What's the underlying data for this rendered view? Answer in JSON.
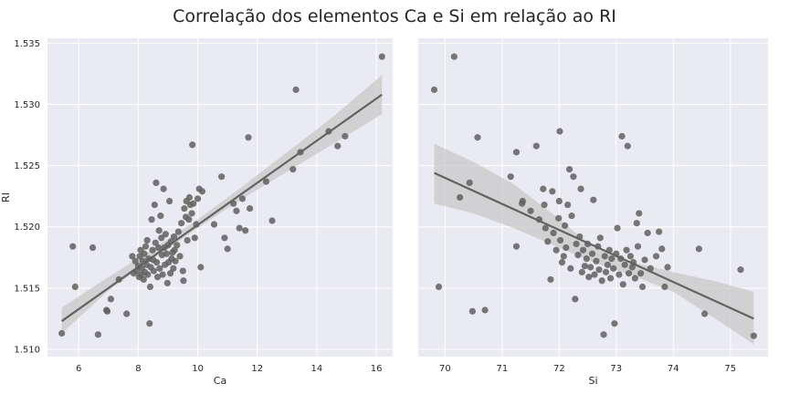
{
  "title": "Correlação dos elementos Ca e Si em relação ao RI",
  "colors": {
    "axes_bg": "#eaeaf2",
    "grid": "#ffffff",
    "point": "#606060",
    "line": "#626262",
    "ci_band": "#c8c8c8",
    "text": "#262626"
  },
  "chart_data": [
    {
      "type": "scatter",
      "regression": true,
      "confidence_band": true,
      "xlabel": "Ca",
      "ylabel": "RI",
      "xlim": [
        4.95,
        16.55
      ],
      "ylim": [
        1.5094,
        1.5354
      ],
      "xticks": [
        "6",
        "8",
        "10",
        "12",
        "14",
        "16"
      ],
      "yticks": [
        "1.510",
        "1.515",
        "1.520",
        "1.525",
        "1.530",
        "1.535"
      ],
      "grid": true,
      "fit": {
        "x": [
          5.43,
          16.19
        ],
        "y": [
          1.5123,
          1.5308
        ]
      },
      "ci": {
        "x": [
          5.43,
          7,
          8.5,
          10,
          11.5,
          13,
          14.5,
          16.19
        ],
        "lower": [
          1.5113,
          1.5148,
          1.5174,
          1.5199,
          1.5223,
          1.5245,
          1.5267,
          1.5292
        ],
        "upper": [
          1.5134,
          1.5159,
          1.5182,
          1.5206,
          1.5233,
          1.5261,
          1.5289,
          1.5324
        ]
      },
      "points": [
        {
          "x": 5.43,
          "y": 1.5113
        },
        {
          "x": 5.8,
          "y": 1.5184
        },
        {
          "x": 5.88,
          "y": 1.5151
        },
        {
          "x": 6.47,
          "y": 1.5183
        },
        {
          "x": 6.65,
          "y": 1.5112
        },
        {
          "x": 6.93,
          "y": 1.5132
        },
        {
          "x": 6.96,
          "y": 1.5131
        },
        {
          "x": 7.08,
          "y": 1.5141
        },
        {
          "x": 7.35,
          "y": 1.5157
        },
        {
          "x": 7.61,
          "y": 1.5129
        },
        {
          "x": 7.8,
          "y": 1.5176
        },
        {
          "x": 7.85,
          "y": 1.5162
        },
        {
          "x": 7.9,
          "y": 1.5172
        },
        {
          "x": 7.95,
          "y": 1.5164
        },
        {
          "x": 8.0,
          "y": 1.5168
        },
        {
          "x": 8.03,
          "y": 1.5159
        },
        {
          "x": 8.05,
          "y": 1.5176
        },
        {
          "x": 8.08,
          "y": 1.5181
        },
        {
          "x": 8.1,
          "y": 1.5161
        },
        {
          "x": 8.12,
          "y": 1.5166
        },
        {
          "x": 8.15,
          "y": 1.5172
        },
        {
          "x": 8.18,
          "y": 1.5157
        },
        {
          "x": 8.2,
          "y": 1.5178
        },
        {
          "x": 8.22,
          "y": 1.5163
        },
        {
          "x": 8.25,
          "y": 1.5184
        },
        {
          "x": 8.28,
          "y": 1.5169
        },
        {
          "x": 8.3,
          "y": 1.5189
        },
        {
          "x": 8.32,
          "y": 1.5161
        },
        {
          "x": 8.35,
          "y": 1.5174
        },
        {
          "x": 8.38,
          "y": 1.5121
        },
        {
          "x": 8.4,
          "y": 1.5151
        },
        {
          "x": 8.42,
          "y": 1.5167
        },
        {
          "x": 8.45,
          "y": 1.5206
        },
        {
          "x": 8.48,
          "y": 1.5181
        },
        {
          "x": 8.5,
          "y": 1.5173
        },
        {
          "x": 8.52,
          "y": 1.5164
        },
        {
          "x": 8.55,
          "y": 1.5218
        },
        {
          "x": 8.58,
          "y": 1.5187
        },
        {
          "x": 8.6,
          "y": 1.5236
        },
        {
          "x": 8.62,
          "y": 1.5171
        },
        {
          "x": 8.65,
          "y": 1.5159
        },
        {
          "x": 8.68,
          "y": 1.5183
        },
        {
          "x": 8.7,
          "y": 1.5197
        },
        {
          "x": 8.72,
          "y": 1.5166
        },
        {
          "x": 8.75,
          "y": 1.5209
        },
        {
          "x": 8.78,
          "y": 1.5191
        },
        {
          "x": 8.8,
          "y": 1.5177
        },
        {
          "x": 8.82,
          "y": 1.5161
        },
        {
          "x": 8.85,
          "y": 1.5231
        },
        {
          "x": 8.88,
          "y": 1.5183
        },
        {
          "x": 8.9,
          "y": 1.5169
        },
        {
          "x": 8.92,
          "y": 1.5194
        },
        {
          "x": 8.95,
          "y": 1.5178
        },
        {
          "x": 8.98,
          "y": 1.5154
        },
        {
          "x": 9.0,
          "y": 1.5185
        },
        {
          "x": 9.02,
          "y": 1.5171
        },
        {
          "x": 9.05,
          "y": 1.5221
        },
        {
          "x": 9.08,
          "y": 1.5162
        },
        {
          "x": 9.1,
          "y": 1.5188
        },
        {
          "x": 9.12,
          "y": 1.5174
        },
        {
          "x": 9.15,
          "y": 1.5179
        },
        {
          "x": 9.18,
          "y": 1.5166
        },
        {
          "x": 9.2,
          "y": 1.5192
        },
        {
          "x": 9.22,
          "y": 1.5181
        },
        {
          "x": 9.25,
          "y": 1.5172
        },
        {
          "x": 9.3,
          "y": 1.5185
        },
        {
          "x": 9.35,
          "y": 1.5196
        },
        {
          "x": 9.4,
          "y": 1.5176
        },
        {
          "x": 9.45,
          "y": 1.5203
        },
        {
          "x": 9.5,
          "y": 1.5164
        },
        {
          "x": 9.52,
          "y": 1.5156
        },
        {
          "x": 9.55,
          "y": 1.5215
        },
        {
          "x": 9.6,
          "y": 1.5208
        },
        {
          "x": 9.62,
          "y": 1.5221
        },
        {
          "x": 9.65,
          "y": 1.5189
        },
        {
          "x": 9.7,
          "y": 1.5206
        },
        {
          "x": 9.72,
          "y": 1.5224
        },
        {
          "x": 9.75,
          "y": 1.5218
        },
        {
          "x": 9.8,
          "y": 1.5211
        },
        {
          "x": 9.82,
          "y": 1.5267
        },
        {
          "x": 9.85,
          "y": 1.5219
        },
        {
          "x": 9.9,
          "y": 1.5191
        },
        {
          "x": 9.95,
          "y": 1.5202
        },
        {
          "x": 10.0,
          "y": 1.5223
        },
        {
          "x": 10.05,
          "y": 1.5231
        },
        {
          "x": 10.1,
          "y": 1.5167
        },
        {
          "x": 10.15,
          "y": 1.5229
        },
        {
          "x": 10.55,
          "y": 1.5202
        },
        {
          "x": 10.8,
          "y": 1.5241
        },
        {
          "x": 10.9,
          "y": 1.5191
        },
        {
          "x": 11.0,
          "y": 1.5182
        },
        {
          "x": 11.2,
          "y": 1.5219
        },
        {
          "x": 11.3,
          "y": 1.5213
        },
        {
          "x": 11.4,
          "y": 1.5199
        },
        {
          "x": 11.5,
          "y": 1.5223
        },
        {
          "x": 11.6,
          "y": 1.5197
        },
        {
          "x": 11.7,
          "y": 1.5273
        },
        {
          "x": 11.75,
          "y": 1.5215
        },
        {
          "x": 12.3,
          "y": 1.5237
        },
        {
          "x": 12.5,
          "y": 1.5205
        },
        {
          "x": 13.2,
          "y": 1.5247
        },
        {
          "x": 13.3,
          "y": 1.5312
        },
        {
          "x": 13.45,
          "y": 1.5261
        },
        {
          "x": 14.4,
          "y": 1.5278
        },
        {
          "x": 14.7,
          "y": 1.5266
        },
        {
          "x": 14.95,
          "y": 1.5274
        },
        {
          "x": 16.19,
          "y": 1.5339
        }
      ]
    },
    {
      "type": "scatter",
      "regression": true,
      "confidence_band": true,
      "xlabel": "Si",
      "ylabel": "",
      "xlim": [
        69.53,
        75.66
      ],
      "ylim": [
        1.5094,
        1.5354
      ],
      "xticks": [
        "70",
        "71",
        "72",
        "73",
        "74",
        "75"
      ],
      "yticks": [],
      "grid": true,
      "fit": {
        "x": [
          69.81,
          75.41
        ],
        "y": [
          1.5244,
          1.5125
        ]
      },
      "ci": {
        "x": [
          69.81,
          70.5,
          71.2,
          71.9,
          72.6,
          73.3,
          74.0,
          74.7,
          75.41
        ],
        "lower": [
          1.5219,
          1.5211,
          1.5199,
          1.5185,
          1.5171,
          1.516,
          1.5147,
          1.5126,
          1.5104
        ],
        "upper": [
          1.5268,
          1.5253,
          1.5235,
          1.521,
          1.5183,
          1.5171,
          1.5163,
          1.5156,
          1.5147
        ]
      },
      "points": [
        {
          "x": 69.81,
          "y": 1.5312
        },
        {
          "x": 69.89,
          "y": 1.5151
        },
        {
          "x": 70.16,
          "y": 1.5339
        },
        {
          "x": 70.26,
          "y": 1.5224
        },
        {
          "x": 70.43,
          "y": 1.5236
        },
        {
          "x": 70.48,
          "y": 1.5131
        },
        {
          "x": 70.57,
          "y": 1.5273
        },
        {
          "x": 70.7,
          "y": 1.5132
        },
        {
          "x": 71.15,
          "y": 1.5241
        },
        {
          "x": 71.25,
          "y": 1.5261
        },
        {
          "x": 71.25,
          "y": 1.5184
        },
        {
          "x": 71.35,
          "y": 1.5219
        },
        {
          "x": 71.36,
          "y": 1.5221
        },
        {
          "x": 71.5,
          "y": 1.5213
        },
        {
          "x": 71.6,
          "y": 1.5266
        },
        {
          "x": 71.65,
          "y": 1.5206
        },
        {
          "x": 71.72,
          "y": 1.5231
        },
        {
          "x": 71.74,
          "y": 1.5218
        },
        {
          "x": 71.76,
          "y": 1.5199
        },
        {
          "x": 71.8,
          "y": 1.5188
        },
        {
          "x": 71.85,
          "y": 1.5157
        },
        {
          "x": 71.88,
          "y": 1.5229
        },
        {
          "x": 71.9,
          "y": 1.5195
        },
        {
          "x": 71.95,
          "y": 1.5181
        },
        {
          "x": 71.99,
          "y": 1.5207
        },
        {
          "x": 72.0,
          "y": 1.5221
        },
        {
          "x": 72.01,
          "y": 1.5278
        },
        {
          "x": 72.02,
          "y": 1.5189
        },
        {
          "x": 72.05,
          "y": 1.5171
        },
        {
          "x": 72.08,
          "y": 1.5176
        },
        {
          "x": 72.1,
          "y": 1.5201
        },
        {
          "x": 72.12,
          "y": 1.5183
        },
        {
          "x": 72.15,
          "y": 1.5218
        },
        {
          "x": 72.18,
          "y": 1.5247
        },
        {
          "x": 72.2,
          "y": 1.5166
        },
        {
          "x": 72.22,
          "y": 1.5209
        },
        {
          "x": 72.25,
          "y": 1.5241
        },
        {
          "x": 72.28,
          "y": 1.5141
        },
        {
          "x": 72.3,
          "y": 1.5186
        },
        {
          "x": 72.33,
          "y": 1.5177
        },
        {
          "x": 72.36,
          "y": 1.5192
        },
        {
          "x": 72.38,
          "y": 1.5231
        },
        {
          "x": 72.4,
          "y": 1.5163
        },
        {
          "x": 72.42,
          "y": 1.5181
        },
        {
          "x": 72.45,
          "y": 1.5168
        },
        {
          "x": 72.48,
          "y": 1.5174
        },
        {
          "x": 72.5,
          "y": 1.5186
        },
        {
          "x": 72.52,
          "y": 1.5159
        },
        {
          "x": 72.55,
          "y": 1.5167
        },
        {
          "x": 72.58,
          "y": 1.5178
        },
        {
          "x": 72.6,
          "y": 1.5222
        },
        {
          "x": 72.62,
          "y": 1.5161
        },
        {
          "x": 72.65,
          "y": 1.5172
        },
        {
          "x": 72.68,
          "y": 1.5184
        },
        {
          "x": 72.7,
          "y": 1.5165
        },
        {
          "x": 72.72,
          "y": 1.5191
        },
        {
          "x": 72.75,
          "y": 1.5156
        },
        {
          "x": 72.78,
          "y": 1.5112
        },
        {
          "x": 72.8,
          "y": 1.5176
        },
        {
          "x": 72.82,
          "y": 1.5163
        },
        {
          "x": 72.85,
          "y": 1.5169
        },
        {
          "x": 72.88,
          "y": 1.5181
        },
        {
          "x": 72.9,
          "y": 1.5158
        },
        {
          "x": 72.92,
          "y": 1.5174
        },
        {
          "x": 72.95,
          "y": 1.5166
        },
        {
          "x": 72.97,
          "y": 1.5121
        },
        {
          "x": 73.0,
          "y": 1.5178
        },
        {
          "x": 73.02,
          "y": 1.5199
        },
        {
          "x": 73.05,
          "y": 1.5161
        },
        {
          "x": 73.08,
          "y": 1.5174
        },
        {
          "x": 73.1,
          "y": 1.5274
        },
        {
          "x": 73.12,
          "y": 1.5153
        },
        {
          "x": 73.15,
          "y": 1.5169
        },
        {
          "x": 73.18,
          "y": 1.5181
        },
        {
          "x": 73.2,
          "y": 1.5266
        },
        {
          "x": 73.22,
          "y": 1.5162
        },
        {
          "x": 73.25,
          "y": 1.5176
        },
        {
          "x": 73.28,
          "y": 1.5167
        },
        {
          "x": 73.3,
          "y": 1.5171
        },
        {
          "x": 73.33,
          "y": 1.5158
        },
        {
          "x": 73.36,
          "y": 1.5203
        },
        {
          "x": 73.38,
          "y": 1.5184
        },
        {
          "x": 73.4,
          "y": 1.5211
        },
        {
          "x": 73.43,
          "y": 1.5162
        },
        {
          "x": 73.46,
          "y": 1.5151
        },
        {
          "x": 73.5,
          "y": 1.5173
        },
        {
          "x": 73.55,
          "y": 1.5195
        },
        {
          "x": 73.6,
          "y": 1.5166
        },
        {
          "x": 73.7,
          "y": 1.5176
        },
        {
          "x": 73.75,
          "y": 1.5196
        },
        {
          "x": 73.8,
          "y": 1.5182
        },
        {
          "x": 73.85,
          "y": 1.5151
        },
        {
          "x": 73.9,
          "y": 1.5167
        },
        {
          "x": 74.45,
          "y": 1.5182
        },
        {
          "x": 74.55,
          "y": 1.5129
        },
        {
          "x": 75.18,
          "y": 1.5165
        },
        {
          "x": 75.41,
          "y": 1.5111
        }
      ]
    }
  ]
}
